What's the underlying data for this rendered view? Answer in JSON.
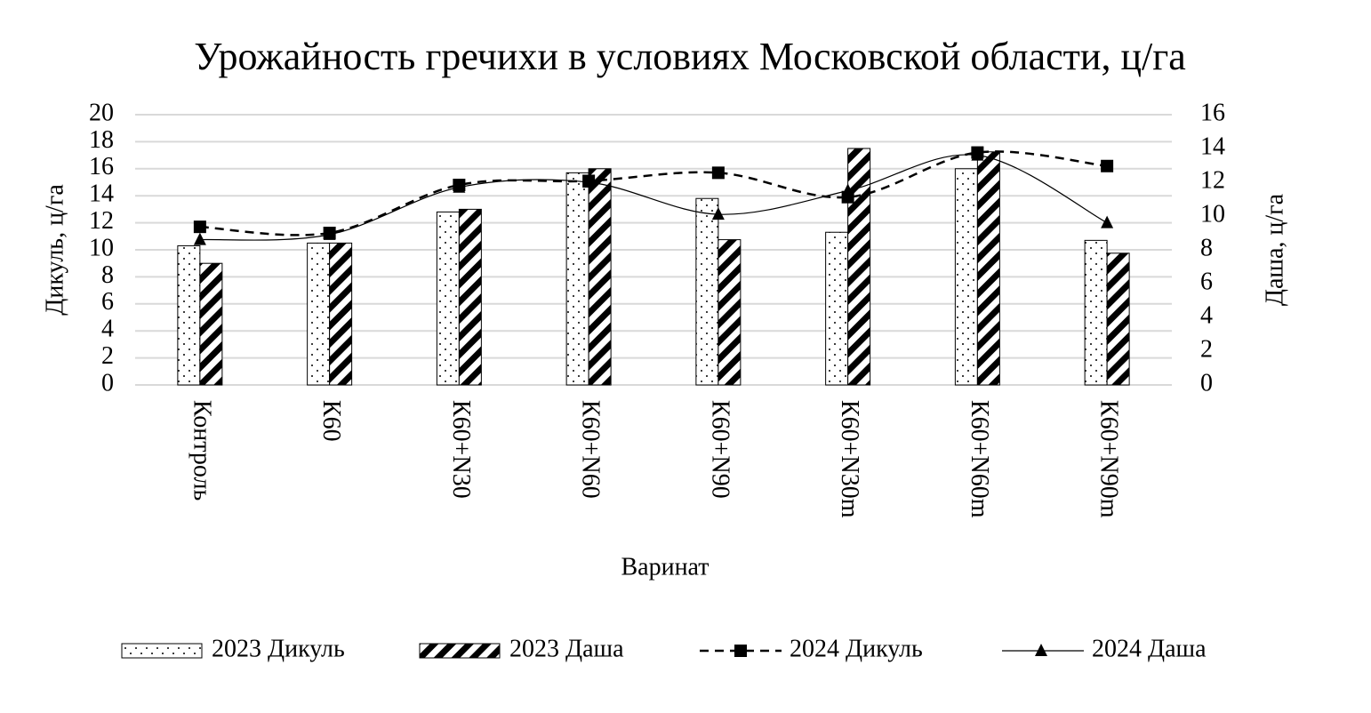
{
  "chart_data": {
    "type": "bar",
    "title": "Урожайность гречихи в условиях Московской области, ц/га",
    "x_label": "Варинат",
    "y_label": "Дикуль, ц/га",
    "y2_label": "Даша, ц/га",
    "categories": [
      "Контроль",
      "К60",
      "К60+N30",
      "К60+N60",
      "К60+N90",
      "К60+N30m",
      "К60+N60m",
      "К60+N90m"
    ],
    "series": [
      {
        "name": "2023 Дикуль",
        "type": "bar",
        "axis": "y",
        "color": "#000000",
        "pattern": "dots",
        "values": [
          10.3,
          10.5,
          12.8,
          15.7,
          13.8,
          11.3,
          16.0,
          10.7
        ]
      },
      {
        "name": "2023 Даша",
        "type": "bar",
        "axis": "y2",
        "color": "#000000",
        "pattern": "hatch",
        "values": [
          7.2,
          8.4,
          10.4,
          12.8,
          8.6,
          14.0,
          13.8,
          7.8
        ]
      },
      {
        "name": "2024 Дикуль",
        "type": "line",
        "axis": "y",
        "color": "#000000",
        "dashed": true,
        "marker": "square",
        "values": [
          11.7,
          11.25,
          14.8,
          15.1,
          15.7,
          13.9,
          17.2,
          16.2
        ]
      },
      {
        "name": "2024 Даша",
        "type": "line",
        "axis": "y2",
        "color": "#000000",
        "dashed": false,
        "marker": "triangle",
        "values": [
          8.6,
          8.9,
          11.7,
          12.0,
          10.1,
          11.5,
          13.6,
          9.6
        ]
      }
    ],
    "ylim": [
      0,
      20
    ],
    "yticks": [
      0,
      2,
      4,
      6,
      8,
      10,
      12,
      14,
      16,
      18,
      20
    ],
    "y2lim": [
      0,
      16
    ],
    "y2ticks": [
      0,
      2,
      4,
      6,
      8,
      10,
      12,
      14,
      16
    ],
    "grid": true,
    "legend": "bottom"
  }
}
